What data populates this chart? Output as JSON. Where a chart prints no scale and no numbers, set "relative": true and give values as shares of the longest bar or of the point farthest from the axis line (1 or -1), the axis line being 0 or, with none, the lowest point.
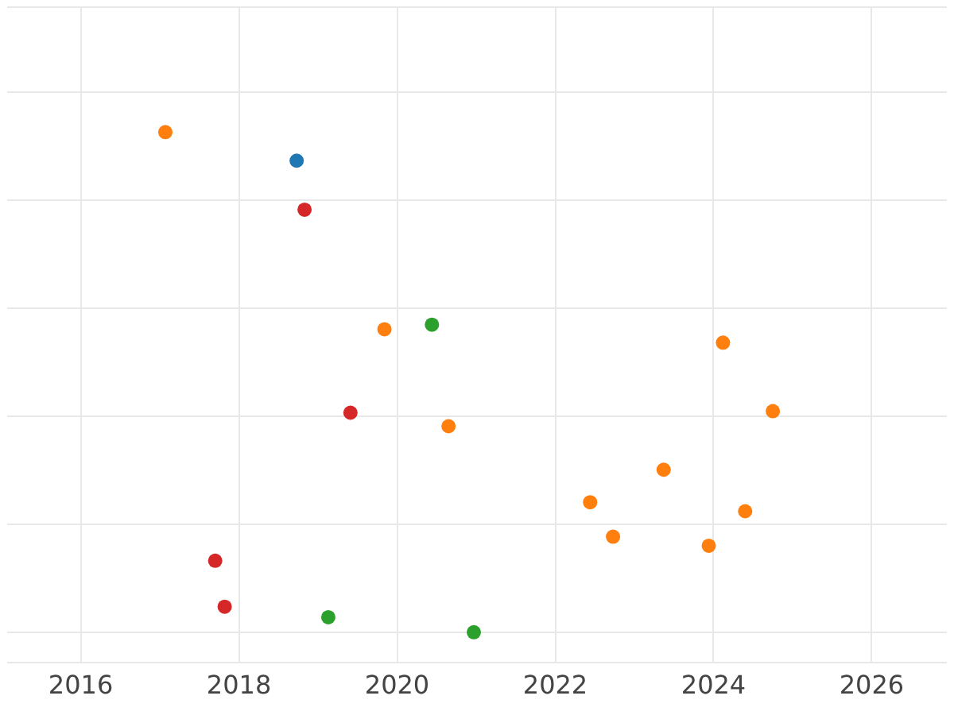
{
  "chart_data": {
    "type": "scatter",
    "relative": true,
    "grid": true,
    "legend": false,
    "marker": "circle",
    "xlim": [
      2015.07,
      2026.95
    ],
    "xticks": [
      2016,
      2018,
      2020,
      2022,
      2024,
      2026
    ],
    "series": [
      {
        "color": "#ff7f0e",
        "x": [
          2017.07,
          2019.84,
          2024.12,
          2024.75,
          2020.65,
          2023.37,
          2022.44,
          2024.4,
          2022.73,
          2023.94
        ],
        "values": [
          1.0,
          0.606,
          0.579,
          0.442,
          0.412,
          0.325,
          0.26,
          0.242,
          0.191,
          0.173
        ]
      },
      {
        "color": "#1f77b4",
        "x": [
          2018.73
        ],
        "values": [
          0.943
        ]
      },
      {
        "color": "#d62728",
        "x": [
          2018.83,
          2019.41,
          2017.7,
          2017.82
        ],
        "values": [
          0.845,
          0.439,
          0.143,
          0.051
        ]
      },
      {
        "color": "#2ca02c",
        "x": [
          2020.44,
          2019.13,
          2020.97
        ],
        "values": [
          0.615,
          0.03,
          0
        ]
      }
    ]
  }
}
